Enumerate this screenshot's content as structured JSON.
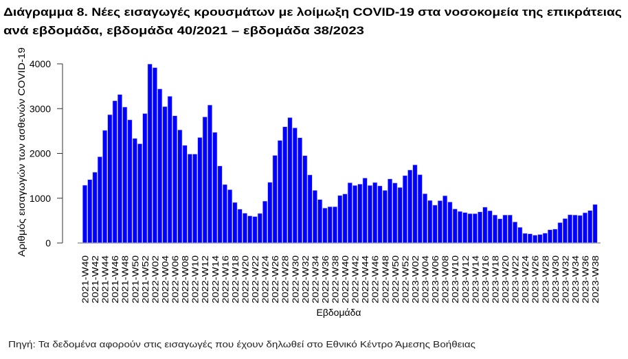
{
  "chart_data": {
    "type": "bar",
    "title_line1": "Διάγραμμα 8. Νέες εισαγωγές κρουσμάτων με λοίμωξη COVID-19 στα νοσοκομεία της επικράτειας",
    "title_line2": "ανά εβδομάδα, εβδομάδα 40/2021 – εβδομάδα 38/2023",
    "xlabel": "Εβδομάδα",
    "ylabel": "Αριθμός εισαγωγών των ασθενών COVID-19",
    "ylim": [
      0,
      4000
    ],
    "yticks": [
      "0",
      "1000",
      "2000",
      "3000",
      "4000"
    ],
    "tick_label_every": 2,
    "bar_color": "#0000ff",
    "grid": false,
    "categories": [
      "2021-W40",
      "2021-W41",
      "2021-W42",
      "2021-W43",
      "2021-W44",
      "2021-W45",
      "2021-W46",
      "2021-W47",
      "2021-W48",
      "2021-W49",
      "2021-W50",
      "2021-W51",
      "2021-W52",
      "2022-W01",
      "2022-W02",
      "2022-W03",
      "2022-W04",
      "2022-W05",
      "2022-W06",
      "2022-W07",
      "2022-W08",
      "2022-W09",
      "2022-W10",
      "2022-W11",
      "2022-W12",
      "2022-W13",
      "2022-W14",
      "2022-W15",
      "2022-W16",
      "2022-W17",
      "2022-W18",
      "2022-W19",
      "2022-W20",
      "2022-W21",
      "2022-W22",
      "2022-W23",
      "2022-W24",
      "2022-W25",
      "2022-W26",
      "2022-W27",
      "2022-W28",
      "2022-W29",
      "2022-W30",
      "2022-W31",
      "2022-W32",
      "2022-W33",
      "2022-W34",
      "2022-W35",
      "2022-W36",
      "2022-W37",
      "2022-W38",
      "2022-W39",
      "2022-W40",
      "2022-W41",
      "2022-W42",
      "2022-W43",
      "2022-W44",
      "2022-W45",
      "2022-W46",
      "2022-W47",
      "2022-W48",
      "2022-W49",
      "2022-W50",
      "2022-W51",
      "2022-W52",
      "2023-W01",
      "2023-W02",
      "2023-W03",
      "2023-W04",
      "2023-W05",
      "2023-W06",
      "2023-W07",
      "2023-W08",
      "2023-W09",
      "2023-W10",
      "2023-W11",
      "2023-W12",
      "2023-W13",
      "2023-W14",
      "2023-W15",
      "2023-W16",
      "2023-W17",
      "2023-W18",
      "2023-W19",
      "2023-W20",
      "2023-W21",
      "2023-W22",
      "2023-W23",
      "2023-W24",
      "2023-W25",
      "2023-W26",
      "2023-W27",
      "2023-W28",
      "2023-W29",
      "2023-W30",
      "2023-W31",
      "2023-W32",
      "2023-W33",
      "2023-W34",
      "2023-W35",
      "2023-W36",
      "2023-W37",
      "2023-W38"
    ],
    "values": [
      1290,
      1415,
      1580,
      1925,
      2515,
      2865,
      3175,
      3315,
      3035,
      2750,
      2335,
      2215,
      2890,
      3995,
      3915,
      3440,
      3045,
      3275,
      2840,
      2525,
      2180,
      1985,
      1985,
      2355,
      2815,
      3080,
      2470,
      1720,
      1305,
      1190,
      905,
      755,
      665,
      605,
      590,
      660,
      935,
      1355,
      1955,
      2290,
      2595,
      2800,
      2570,
      2350,
      1950,
      1520,
      1175,
      970,
      780,
      810,
      810,
      1060,
      1095,
      1345,
      1285,
      1315,
      1450,
      1285,
      1350,
      1275,
      1175,
      1430,
      1340,
      1240,
      1505,
      1630,
      1745,
      1525,
      1100,
      950,
      845,
      945,
      1055,
      915,
      760,
      705,
      680,
      655,
      655,
      695,
      800,
      720,
      625,
      540,
      625,
      625,
      470,
      350,
      215,
      205,
      175,
      190,
      220,
      295,
      310,
      455,
      545,
      630,
      625,
      615,
      675,
      725,
      860
    ]
  },
  "footer": "Πηγή: Τα δεδομένα αφορούν στις εισαγωγές που έχουν δηλωθεί στο Εθνικό Κέντρο Άμεσης Βοήθειας"
}
